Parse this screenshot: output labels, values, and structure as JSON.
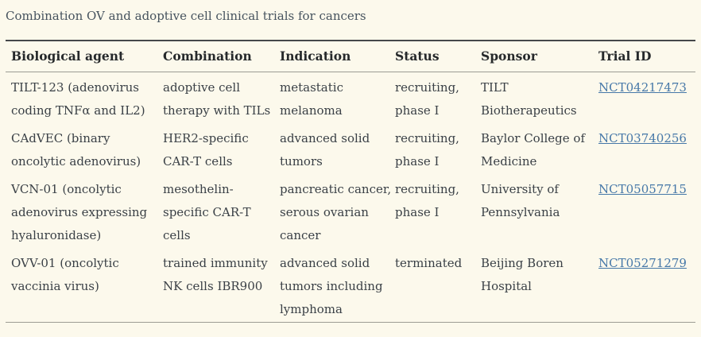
{
  "page": {
    "title": "Combination OV and adoptive cell clinical trials for cancers"
  },
  "colors": {
    "background": "#fcf9ec",
    "title_text": "#46535e",
    "header_text": "#26292b",
    "body_text": "#3a4046",
    "link": "#4678a8",
    "border_dark": "#45474a",
    "border_light": "#9c9c94"
  },
  "table": {
    "columns": [
      "Biological agent",
      "Combination",
      "Indication",
      "Status",
      "Sponsor",
      "Trial ID"
    ],
    "rows": [
      {
        "agent": "TILT-123 (adenovirus coding TNFα and IL2)",
        "combination": "adoptive cell therapy with TILs",
        "indication": "metastatic melanoma",
        "status": "recruiting, phase I",
        "sponsor": "TILT Biotherapeutics",
        "trial_id": "NCT04217473"
      },
      {
        "agent": "CAdVEC (binary oncolytic adenovirus)",
        "combination": "HER2-specific CAR-T cells",
        "indication": "advanced solid tumors",
        "status": "recruiting, phase I",
        "sponsor": "Baylor College of Medicine",
        "trial_id": "NCT03740256"
      },
      {
        "agent": "VCN-01 (oncolytic adenovirus expressing hyaluronidase)",
        "combination": "mesothelin-specific CAR-T cells",
        "indication": "pancreatic cancer, serous ovarian cancer",
        "status": "recruiting, phase I",
        "sponsor": "University of Pennsylvania",
        "trial_id": "NCT05057715"
      },
      {
        "agent": "OVV-01 (oncolytic vaccinia virus)",
        "combination": "trained immunity NK cells IBR900",
        "indication": "advanced solid tumors including lymphoma",
        "status": "terminated",
        "sponsor": "Beijing Boren Hospital",
        "trial_id": "NCT05271279"
      }
    ]
  }
}
